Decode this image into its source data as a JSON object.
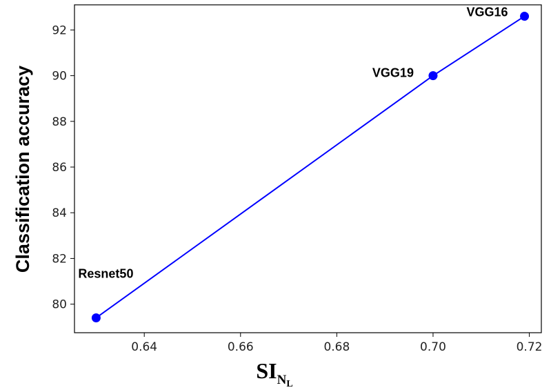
{
  "chart_data": {
    "type": "line",
    "title": "",
    "xlabel": {
      "main": "SI",
      "sub": "N",
      "subsub": "L"
    },
    "ylabel": "Classification accuracy",
    "xlim": [
      0.6255,
      0.7225
    ],
    "ylim": [
      78.75,
      93.1
    ],
    "xticks": [
      0.64,
      0.66,
      0.68,
      0.7,
      0.72
    ],
    "xtick_labels": [
      "0.64",
      "0.66",
      "0.68",
      "0.70",
      "0.72"
    ],
    "yticks": [
      80,
      82,
      84,
      86,
      88,
      90,
      92
    ],
    "ytick_labels": [
      "80",
      "82",
      "84",
      "86",
      "88",
      "90",
      "92"
    ],
    "grid": false,
    "series": [
      {
        "color": "#0000ff",
        "points": [
          {
            "x": 0.63,
            "y": 79.4,
            "label": "Resnet50"
          },
          {
            "x": 0.7,
            "y": 90.0,
            "label": "VGG19"
          },
          {
            "x": 0.719,
            "y": 92.6,
            "label": "VGG16"
          }
        ]
      }
    ]
  }
}
